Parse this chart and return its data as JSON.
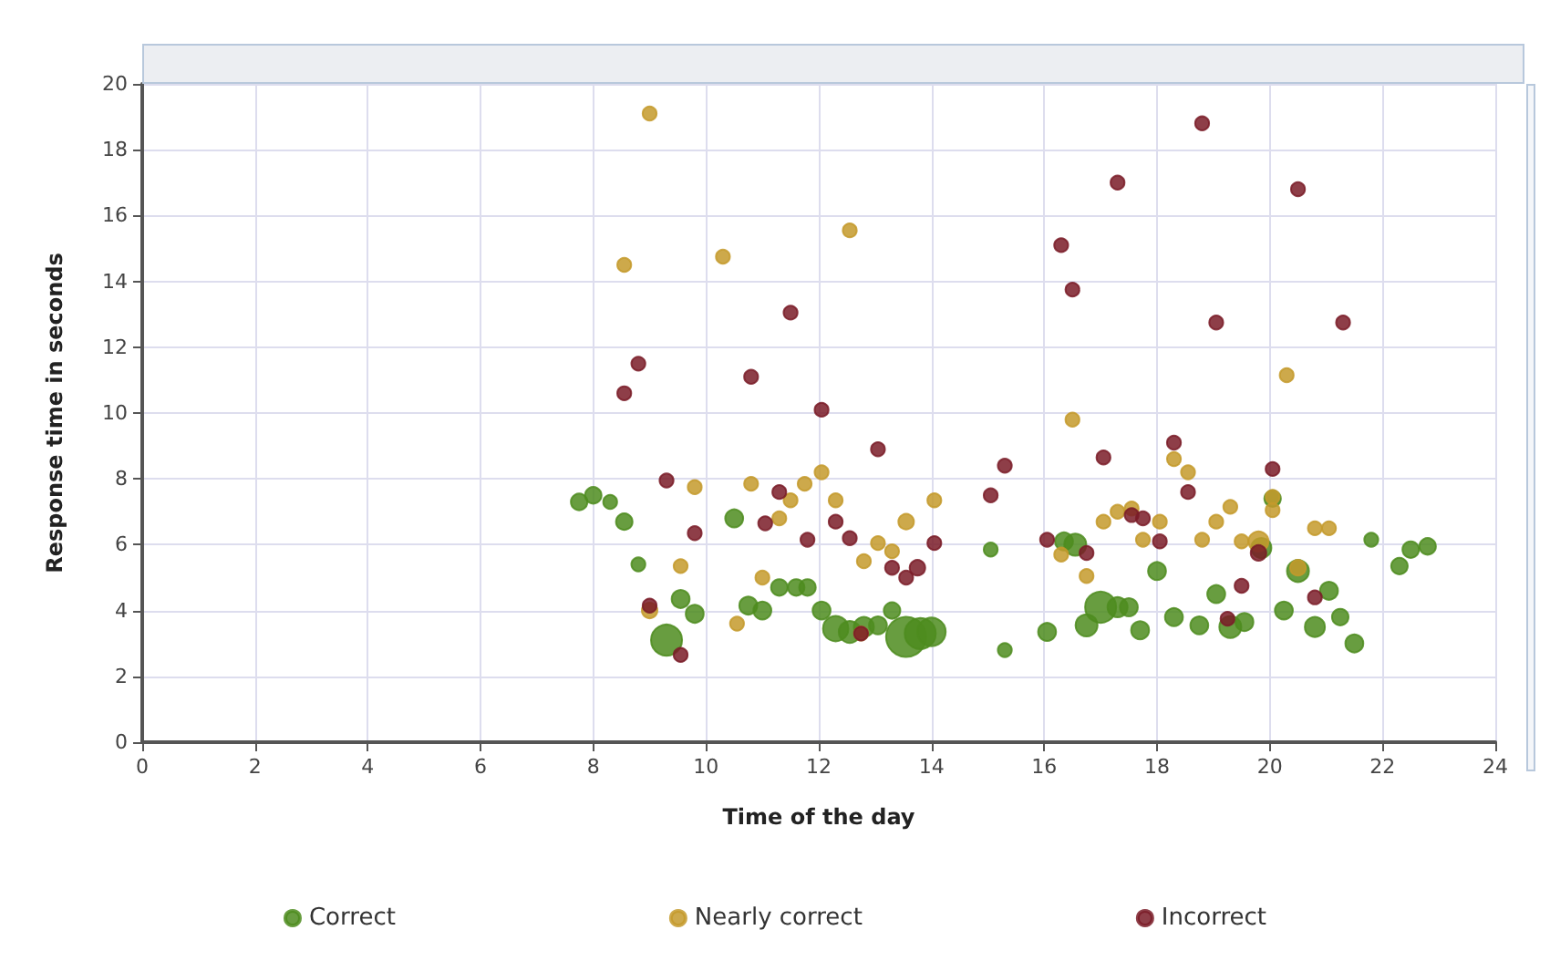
{
  "chart_data": {
    "type": "bubble",
    "xlabel": "Time of the day",
    "ylabel": "Response time in seconds",
    "xlim": [
      0,
      24
    ],
    "xticks": [
      0,
      2,
      4,
      6,
      8,
      10,
      12,
      14,
      16,
      18,
      20,
      22,
      24
    ],
    "ylim": [
      0,
      20
    ],
    "yticks": [
      0,
      2,
      4,
      6,
      8,
      10,
      12,
      14,
      16,
      18,
      20
    ],
    "grid": true,
    "legend": "bottom",
    "marker": "circle",
    "series": [
      {
        "name": "Correct",
        "color": "#4e8c1e",
        "x": [
          7.75,
          8.0,
          8.3,
          8.55,
          8.8,
          9.3,
          9.55,
          9.8,
          10.5,
          10.75,
          11.0,
          11.3,
          11.6,
          11.8,
          12.05,
          12.3,
          12.55,
          12.8,
          13.05,
          13.3,
          13.55,
          13.8,
          14.0,
          15.05,
          15.3,
          16.05,
          16.35,
          16.55,
          16.75,
          17.0,
          17.3,
          17.5,
          17.7,
          18.0,
          18.3,
          18.75,
          19.05,
          19.3,
          19.55,
          19.85,
          20.05,
          20.25,
          20.5,
          20.8,
          21.05,
          21.25,
          21.5,
          21.8,
          22.3,
          22.5,
          22.8
        ],
        "values": [
          7.3,
          7.5,
          7.3,
          6.7,
          5.4,
          3.1,
          4.35,
          3.9,
          6.8,
          4.15,
          4.0,
          4.7,
          4.7,
          4.7,
          4.0,
          3.45,
          3.35,
          3.5,
          3.55,
          4.0,
          3.2,
          3.3,
          3.35,
          5.85,
          2.8,
          3.35,
          6.1,
          6.0,
          3.55,
          4.1,
          4.1,
          4.1,
          3.4,
          5.2,
          3.8,
          3.55,
          4.5,
          3.5,
          3.65,
          5.9,
          7.4,
          4.0,
          5.2,
          3.5,
          4.6,
          3.8,
          3.0,
          6.15,
          5.35,
          5.85,
          5.95
        ],
        "sizes": [
          0.17,
          0.17,
          0.12,
          0.17,
          0.12,
          0.6,
          0.2,
          0.2,
          0.2,
          0.2,
          0.2,
          0.17,
          0.17,
          0.17,
          0.2,
          0.4,
          0.3,
          0.25,
          0.2,
          0.17,
          1,
          0.6,
          0.5,
          0.12,
          0.12,
          0.2,
          0.2,
          0.3,
          0.3,
          0.6,
          0.25,
          0.2,
          0.2,
          0.2,
          0.2,
          0.2,
          0.2,
          0.3,
          0.2,
          0.25,
          0.17,
          0.2,
          0.3,
          0.25,
          0.2,
          0.17,
          0.2,
          0.12,
          0.17,
          0.17,
          0.17
        ]
      },
      {
        "name": "Nearly correct",
        "color": "#c49a2c",
        "x": [
          9.0,
          8.55,
          10.3,
          12.55,
          9.8,
          10.8,
          11.75,
          12.05,
          11.5,
          12.3,
          11.3,
          14.05,
          13.55,
          13.05,
          13.3,
          12.8,
          9.55,
          11.0,
          9.0,
          10.55,
          12.75,
          16.5,
          20.3,
          18.3,
          18.55,
          20.05,
          20.05,
          17.05,
          17.3,
          17.55,
          18.05,
          17.75,
          19.05,
          19.3,
          18.8,
          19.5,
          19.8,
          16.3,
          16.75,
          20.8,
          21.05,
          20.5
        ],
        "values": [
          19.1,
          14.5,
          14.75,
          15.55,
          7.75,
          7.85,
          7.85,
          8.2,
          7.35,
          7.35,
          6.8,
          7.35,
          6.7,
          6.05,
          5.8,
          5.5,
          5.35,
          5.0,
          4.0,
          3.6,
          3.3,
          9.8,
          11.15,
          8.6,
          8.2,
          7.45,
          7.05,
          6.7,
          7.0,
          7.1,
          6.7,
          6.15,
          6.7,
          7.15,
          6.15,
          6.1,
          6.1,
          5.7,
          5.05,
          6.5,
          6.5,
          5.3
        ],
        "sizes": [
          0.12,
          0.12,
          0.12,
          0.12,
          0.12,
          0.12,
          0.12,
          0.12,
          0.12,
          0.12,
          0.12,
          0.12,
          0.15,
          0.12,
          0.12,
          0.12,
          0.12,
          0.12,
          0.15,
          0.12,
          0.12,
          0.12,
          0.12,
          0.12,
          0.12,
          0.12,
          0.12,
          0.12,
          0.12,
          0.12,
          0.12,
          0.12,
          0.12,
          0.12,
          0.12,
          0.12,
          0.25,
          0.12,
          0.12,
          0.12,
          0.12,
          0.15
        ]
      },
      {
        "name": "Incorrect",
        "color": "#7a1c28",
        "x": [
          8.8,
          8.55,
          10.8,
          11.5,
          18.8,
          17.3,
          20.5,
          16.3,
          16.5,
          19.05,
          21.3,
          12.05,
          13.05,
          15.3,
          15.05,
          9.3,
          9.8,
          11.3,
          11.05,
          12.3,
          11.8,
          12.55,
          14.05,
          13.3,
          13.55,
          13.75,
          9.0,
          9.55,
          12.75,
          20.05,
          17.05,
          18.3,
          18.55,
          16.05,
          17.55,
          17.75,
          18.05,
          16.75,
          19.5,
          20.8,
          19.25,
          19.8
        ],
        "values": [
          11.5,
          10.6,
          11.1,
          13.05,
          18.8,
          17.0,
          16.8,
          15.1,
          13.75,
          12.75,
          12.75,
          10.1,
          8.9,
          8.4,
          7.5,
          7.95,
          6.35,
          7.6,
          6.65,
          6.7,
          6.15,
          6.2,
          6.05,
          5.3,
          5.0,
          5.3,
          4.15,
          2.65,
          3.3,
          8.3,
          8.65,
          9.1,
          7.6,
          6.15,
          6.9,
          6.8,
          6.1,
          5.75,
          4.75,
          4.4,
          3.75,
          5.75
        ],
        "sizes": [
          0.12,
          0.12,
          0.12,
          0.12,
          0.12,
          0.12,
          0.12,
          0.12,
          0.12,
          0.12,
          0.12,
          0.12,
          0.12,
          0.12,
          0.12,
          0.12,
          0.12,
          0.12,
          0.12,
          0.12,
          0.12,
          0.12,
          0.12,
          0.12,
          0.12,
          0.15,
          0.12,
          0.12,
          0.12,
          0.12,
          0.12,
          0.12,
          0.12,
          0.12,
          0.12,
          0.12,
          0.12,
          0.12,
          0.12,
          0.12,
          0.12,
          0.15
        ]
      }
    ]
  }
}
